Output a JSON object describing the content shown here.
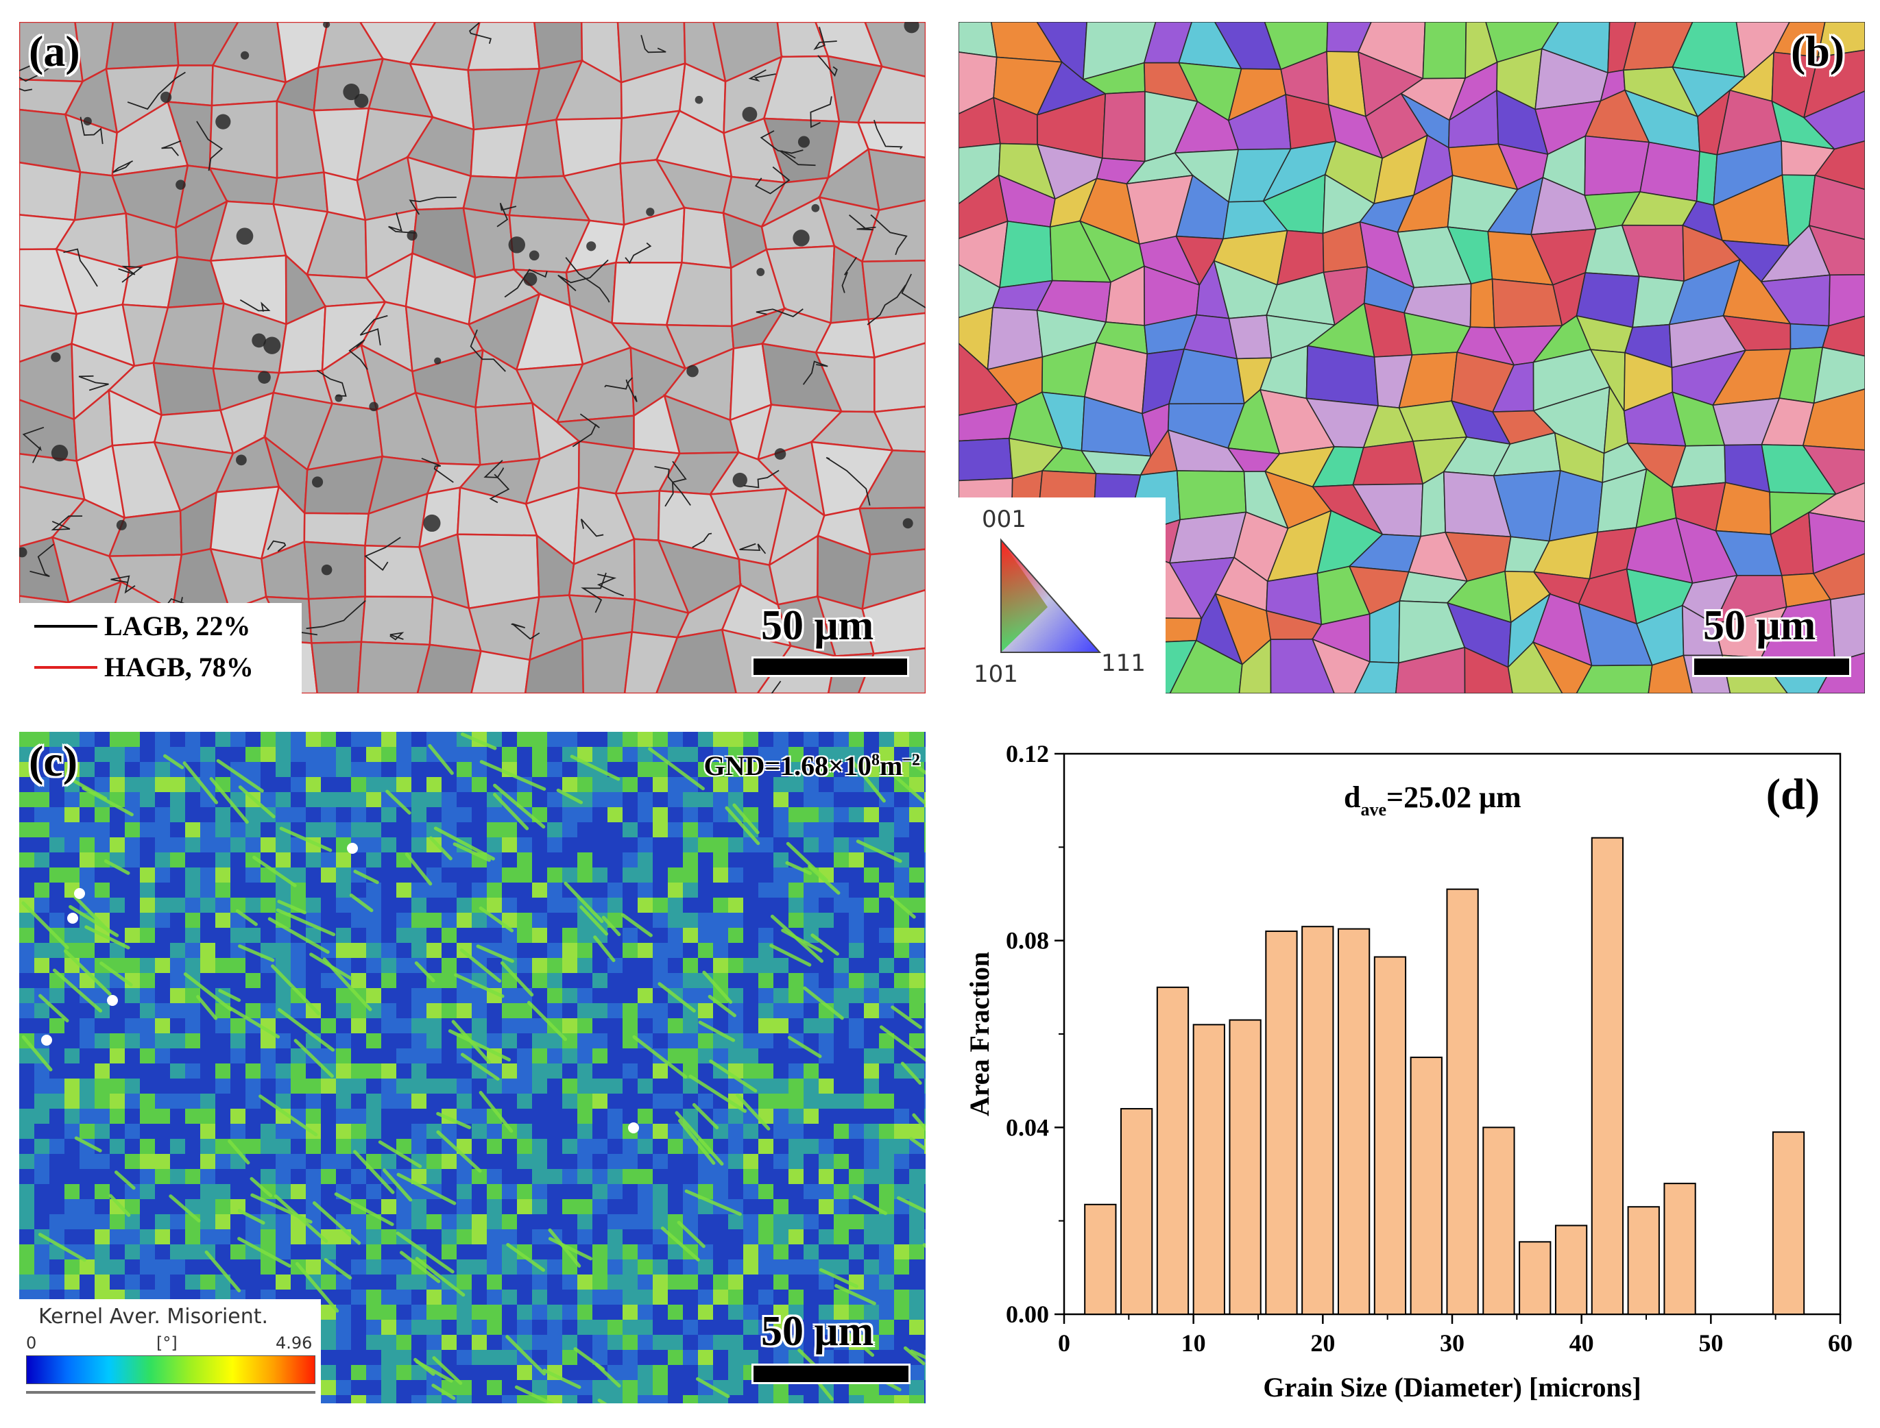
{
  "panels": {
    "a": {
      "label": "(a)",
      "legend": [
        {
          "text": "LAGB, 22%",
          "color": "#000000"
        },
        {
          "text": "HAGB, 78%",
          "color": "#e02020"
        }
      ],
      "scale_text": "50 μm"
    },
    "b": {
      "label": "(b)",
      "ipf_labels": {
        "top": "001",
        "left": "101",
        "right": "111"
      },
      "scale_text": "50 μm"
    },
    "c": {
      "label": "(c)",
      "gnd_text": "GND=1.68×10",
      "gnd_exp": "8",
      "gnd_unit": "m",
      "gnd_unit_exp": "−2",
      "colorbar_title": "Kernel Aver. Misorient.",
      "colorbar_min": "0",
      "colorbar_unit": "[°]",
      "colorbar_max": "4.96",
      "scale_text": "50 μm"
    }
  },
  "chart_data": {
    "type": "bar",
    "panel_label": "(d)",
    "annotation_main": "d",
    "annotation_sub": "ave",
    "annotation_rest": "=25.02 μm",
    "xlabel": "Grain Size (Diameter) [microns]",
    "ylabel": "Area Fraction",
    "xlim": [
      0,
      60
    ],
    "ylim": [
      0,
      0.12
    ],
    "xticks": [
      0,
      10,
      20,
      30,
      40,
      50,
      60
    ],
    "yticks": [
      "0.00",
      "0.04",
      "0.08",
      "0.12"
    ],
    "bar_width": 2.4,
    "bar_color": "#f9bf8f",
    "x": [
      2.8,
      5.6,
      8.4,
      11.2,
      14.0,
      16.8,
      19.6,
      22.4,
      25.2,
      28.0,
      30.8,
      33.6,
      36.4,
      39.2,
      42.0,
      44.8,
      47.6,
      56.0
    ],
    "values": [
      0.0235,
      0.044,
      0.07,
      0.062,
      0.063,
      0.082,
      0.083,
      0.0825,
      0.0765,
      0.055,
      0.091,
      0.04,
      0.0155,
      0.019,
      0.102,
      0.023,
      0.028,
      0.039
    ]
  }
}
